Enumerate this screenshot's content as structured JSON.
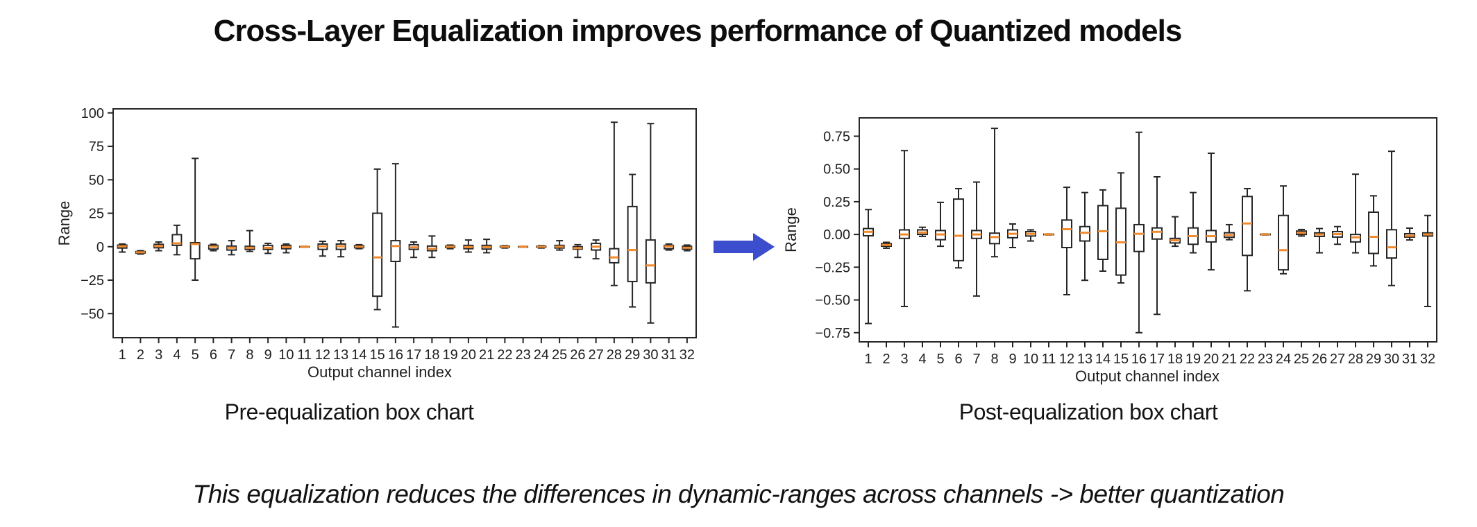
{
  "title": "Cross-Layer Equalization improves performance of Quantized models",
  "note": "This equalization reduces the differences in dynamic-ranges across channels -> better quantization",
  "colors": {
    "box_line": "#262626",
    "median": "#ef8a2f",
    "arrow": "#3c4ece",
    "axis_text": "#1f1f1f",
    "background": "#ffffff"
  },
  "icons": {
    "arrow": "arrow-right-icon"
  },
  "chart_data": [
    {
      "type": "boxplot",
      "caption": "Pre-equalization box chart",
      "xlabel": "Output channel index",
      "ylabel": "Range",
      "ylim": [
        -68,
        103
      ],
      "grid": false,
      "y_ticks": {
        "values": [
          100,
          75,
          50,
          25,
          0,
          -25,
          -50
        ],
        "labels": [
          "100",
          "75",
          "50",
          "25",
          "0",
          "−25",
          "−50"
        ]
      },
      "categories": [
        "1",
        "2",
        "3",
        "4",
        "5",
        "6",
        "7",
        "8",
        "9",
        "10",
        "11",
        "12",
        "13",
        "14",
        "15",
        "16",
        "17",
        "18",
        "19",
        "20",
        "21",
        "22",
        "23",
        "24",
        "25",
        "26",
        "27",
        "28",
        "29",
        "30",
        "31",
        "32"
      ],
      "boxes_format": [
        "whisker_low",
        "q1",
        "median",
        "q3",
        "whisker_high"
      ],
      "boxes": [
        [
          -4,
          -1,
          0.3,
          1.2,
          2
        ],
        [
          -5.5,
          -4.8,
          -4.2,
          -3.6,
          -3
        ],
        [
          -3,
          -0.8,
          0.5,
          1.8,
          3.5
        ],
        [
          -6,
          1,
          2.5,
          9,
          16
        ],
        [
          -25,
          -9,
          2,
          3,
          66
        ],
        [
          -3,
          -1.8,
          0,
          1,
          1.8
        ],
        [
          -6,
          -2.5,
          -0.8,
          0.5,
          4.5
        ],
        [
          -3.5,
          -2,
          -0.8,
          0.3,
          12
        ],
        [
          -5,
          -2,
          -0.8,
          1,
          2.5
        ],
        [
          -4.5,
          -1.5,
          -0.3,
          1,
          2
        ],
        [
          -0.3,
          -0.1,
          0,
          0.1,
          0.3
        ],
        [
          -7,
          -2,
          0.3,
          2,
          4
        ],
        [
          -7.5,
          -2,
          0.3,
          2,
          4.5
        ],
        [
          -1.5,
          -0.8,
          0,
          0.8,
          1.5
        ],
        [
          -47,
          -37,
          -8,
          25,
          58
        ],
        [
          -60,
          -11,
          0.5,
          4.5,
          62
        ],
        [
          -8,
          -2,
          -0.5,
          1.5,
          3.5
        ],
        [
          -8,
          -3,
          -1.5,
          0.5,
          8
        ],
        [
          -1.5,
          -0.6,
          0,
          0.6,
          1.2
        ],
        [
          -4,
          -1.5,
          -0.3,
          1,
          5
        ],
        [
          -4.5,
          -1.8,
          -0.3,
          1,
          5.5
        ],
        [
          -1,
          -0.4,
          0,
          0.4,
          0.8
        ],
        [
          -0.3,
          -0.1,
          0,
          0.1,
          0.3
        ],
        [
          -1,
          -0.4,
          0,
          0.4,
          0.8
        ],
        [
          -2.5,
          -1,
          0,
          1,
          4.5
        ],
        [
          -8,
          -1.8,
          -1,
          0,
          1.5
        ],
        [
          -9,
          -2.5,
          0,
          2.5,
          5
        ],
        [
          -29,
          -12,
          -8,
          -1.5,
          93
        ],
        [
          -45,
          -26,
          -2.5,
          30,
          54
        ],
        [
          -57,
          -27,
          -14,
          5,
          92
        ],
        [
          -2.5,
          -1.5,
          0.3,
          1,
          2
        ],
        [
          -3,
          -1.8,
          -0.8,
          0.3,
          1.2
        ]
      ]
    },
    {
      "type": "boxplot",
      "caption": "Post-equalization box chart",
      "xlabel": "Output channel index",
      "ylabel": "Range",
      "ylim": [
        -0.82,
        0.89
      ],
      "grid": false,
      "y_ticks": {
        "values": [
          0.75,
          0.5,
          0.25,
          0.0,
          -0.25,
          -0.5,
          -0.75
        ],
        "labels": [
          "0.75",
          "0.50",
          "0.25",
          "0.00",
          "−0.25",
          "−0.50",
          "−0.75"
        ]
      },
      "categories": [
        "1",
        "2",
        "3",
        "4",
        "5",
        "6",
        "7",
        "8",
        "9",
        "10",
        "11",
        "12",
        "13",
        "14",
        "15",
        "16",
        "17",
        "18",
        "19",
        "20",
        "21",
        "22",
        "23",
        "24",
        "25",
        "26",
        "27",
        "28",
        "29",
        "30",
        "31",
        "32"
      ],
      "boxes_format": [
        "whisker_low",
        "q1",
        "median",
        "q3",
        "whisker_high"
      ],
      "boxes": [
        [
          -0.68,
          -0.01,
          0.02,
          0.045,
          0.19
        ],
        [
          -0.105,
          -0.09,
          -0.08,
          -0.07,
          -0.06
        ],
        [
          -0.55,
          -0.03,
          0.0,
          0.035,
          0.64
        ],
        [
          -0.015,
          0.0,
          0.015,
          0.035,
          0.055
        ],
        [
          -0.09,
          -0.04,
          0.0,
          0.03,
          0.245
        ],
        [
          -0.255,
          -0.2,
          -0.01,
          0.27,
          0.35
        ],
        [
          -0.47,
          -0.03,
          0.0,
          0.03,
          0.4
        ],
        [
          -0.17,
          -0.07,
          -0.02,
          0.01,
          0.81
        ],
        [
          -0.1,
          -0.025,
          0.005,
          0.035,
          0.08
        ],
        [
          -0.05,
          -0.012,
          0.005,
          0.022,
          0.035
        ],
        [
          -0.004,
          -0.002,
          0.0,
          0.002,
          0.004
        ],
        [
          -0.46,
          -0.1,
          0.04,
          0.11,
          0.36
        ],
        [
          -0.35,
          -0.05,
          0.013,
          0.06,
          0.32
        ],
        [
          -0.28,
          -0.19,
          0.025,
          0.22,
          0.34
        ],
        [
          -0.37,
          -0.31,
          -0.06,
          0.2,
          0.47
        ],
        [
          -0.75,
          -0.13,
          0.005,
          0.075,
          0.78
        ],
        [
          -0.61,
          -0.035,
          0.02,
          0.05,
          0.44
        ],
        [
          -0.09,
          -0.065,
          -0.045,
          -0.03,
          0.135
        ],
        [
          -0.14,
          -0.075,
          -0.013,
          0.05,
          0.32
        ],
        [
          -0.27,
          -0.057,
          -0.013,
          0.03,
          0.62
        ],
        [
          -0.04,
          -0.022,
          -0.005,
          0.013,
          0.075
        ],
        [
          -0.43,
          -0.16,
          0.084,
          0.29,
          0.35
        ],
        [
          -0.004,
          -0.002,
          0.0,
          0.002,
          0.004
        ],
        [
          -0.3,
          -0.27,
          -0.12,
          0.145,
          0.37
        ],
        [
          -0.012,
          0.0,
          0.013,
          0.026,
          0.038
        ],
        [
          -0.14,
          -0.015,
          0.0,
          0.012,
          0.045
        ],
        [
          -0.075,
          -0.02,
          0.003,
          0.022,
          0.06
        ],
        [
          -0.14,
          -0.057,
          -0.022,
          0.0,
          0.46
        ],
        [
          -0.24,
          -0.145,
          -0.018,
          0.17,
          0.295
        ],
        [
          -0.39,
          -0.18,
          -0.098,
          0.036,
          0.635
        ],
        [
          -0.042,
          -0.02,
          -0.01,
          0.006,
          0.048
        ],
        [
          -0.55,
          -0.012,
          0.0,
          0.012,
          0.145
        ]
      ]
    }
  ]
}
